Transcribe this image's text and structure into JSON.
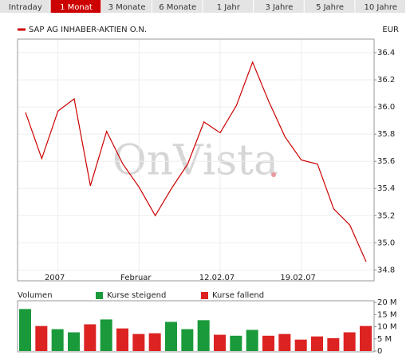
{
  "tabs": {
    "items": [
      "Intraday",
      "1 Monat",
      "3 Monate",
      "6 Monate",
      "1 Jahr",
      "3 Jahre",
      "5 Jahre",
      "10 Jahre"
    ],
    "active": 1
  },
  "watermark": "OnVista",
  "chart_data": [
    {
      "type": "line",
      "unit": "EUR",
      "categories": [
        null,
        null,
        "2007",
        null,
        null,
        null,
        null,
        "Februar",
        null,
        null,
        null,
        null,
        "12.02.07",
        null,
        null,
        null,
        null,
        "19.02.07",
        null,
        null,
        null,
        null
      ],
      "series": [
        {
          "name": "SAP AG INHABER-AKTIEN O.N.",
          "color": "#cc0000",
          "values": [
            35.96,
            35.62,
            35.97,
            36.06,
            35.42,
            35.82,
            35.58,
            35.41,
            35.2,
            35.4,
            35.58,
            35.89,
            35.81,
            36.01,
            36.33,
            36.04,
            35.78,
            35.61,
            35.58,
            35.25,
            35.13,
            34.86
          ]
        }
      ],
      "ylim": [
        34.72,
        36.5
      ],
      "yticks": [
        {
          "value": 34.8,
          "label": "34.8"
        },
        {
          "value": 35,
          "label": "35.0"
        },
        35.2,
        35.4,
        35.6,
        35.8,
        {
          "value": 36,
          "label": "36.0"
        },
        36.2,
        36.4
      ],
      "grid": true
    },
    {
      "type": "bar",
      "title": "Volumen",
      "categories": [
        null,
        null,
        "2007",
        null,
        null,
        null,
        null,
        "Februar",
        null,
        null,
        null,
        null,
        "12.02.07",
        null,
        null,
        null,
        null,
        "19.02.07",
        null,
        null,
        null,
        null
      ],
      "series": [
        {
          "name": "Kurse steigend",
          "color": "#1a9a3a",
          "values": [
            17.3,
            null,
            9.0,
            7.7,
            null,
            13.0,
            null,
            null,
            null,
            12.0,
            9.0,
            12.7,
            null,
            6.3,
            8.7,
            null,
            null,
            null,
            null,
            null,
            null,
            null
          ]
        },
        {
          "name": "Kurse fallend",
          "color": "#dd2222",
          "values": [
            null,
            10.3,
            null,
            null,
            11.0,
            null,
            9.3,
            7.0,
            7.3,
            null,
            null,
            null,
            6.7,
            null,
            null,
            6.3,
            7.0,
            4.7,
            6.0,
            5.3,
            7.7,
            10.3
          ]
        }
      ],
      "ylim": [
        0,
        20.7
      ],
      "yticks": [
        0,
        {
          "value": 5,
          "label": "5 M"
        },
        {
          "value": 10,
          "label": "10 M"
        },
        {
          "value": 15,
          "label": "15 M"
        },
        {
          "value": 20,
          "label": "20 M"
        }
      ]
    }
  ]
}
